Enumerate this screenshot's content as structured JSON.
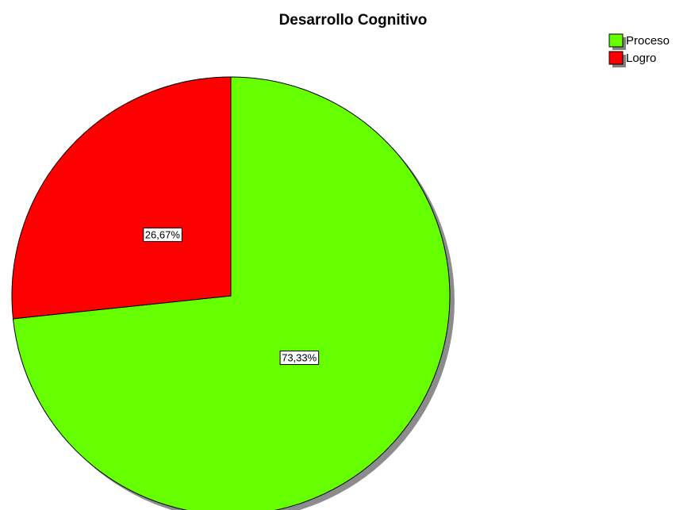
{
  "chart_data": {
    "type": "pie",
    "title": "Desarrollo Cognitivo",
    "categories": [
      "Proceso",
      "Logro"
    ],
    "values": [
      73.33,
      26.67
    ],
    "value_labels": [
      "73,33%",
      "26,67%"
    ],
    "colors": [
      "#66ff00",
      "#ff0000"
    ],
    "legend_position": "top-right"
  }
}
